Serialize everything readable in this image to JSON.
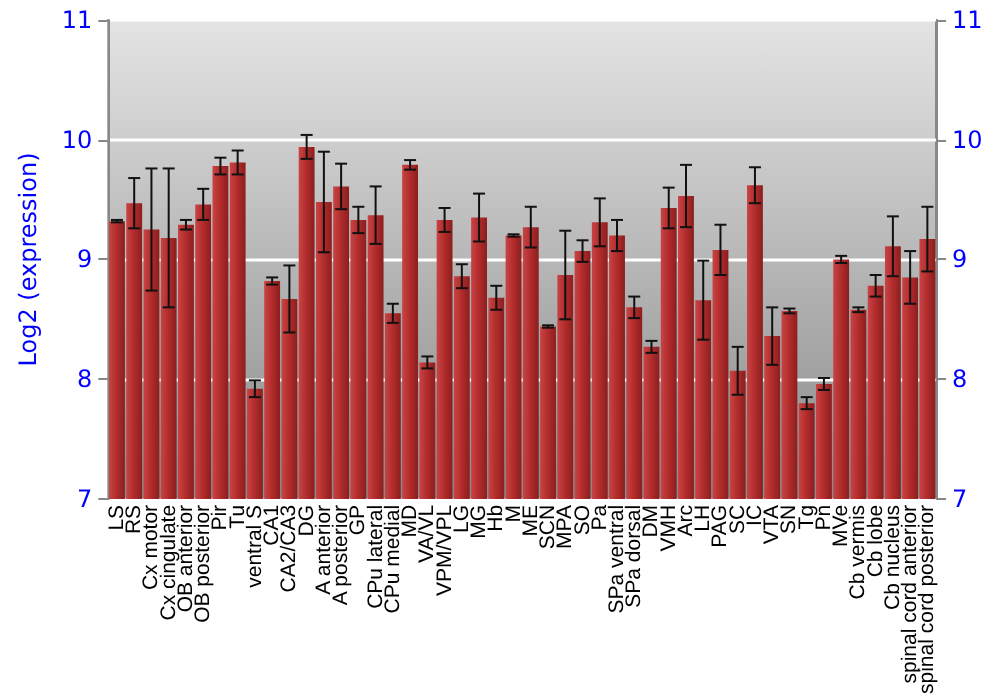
{
  "chart_data": {
    "type": "bar",
    "ylabel": "Log2 (expression)",
    "categories": [
      "LS",
      "RS",
      "Cx motor",
      "Cx cingulate",
      "OB anterior",
      "OB posterior",
      "Pir",
      "Tu",
      "ventral S",
      "CA1",
      "CA2/CA3",
      "DG",
      "A anterior",
      "A posterior",
      "GP",
      "CPu lateral",
      "CPu medial",
      "MD",
      "VA/VL",
      "VPM/VPL",
      "LG",
      "MG",
      "Hb",
      "M",
      "ME",
      "SCN",
      "MPA",
      "SO",
      "Pa",
      "SPa ventral",
      "SPa dorsal",
      "DM",
      "VMH",
      "Arc",
      "LH",
      "PAG",
      "SC",
      "IC",
      "VTA",
      "SN",
      "Tg",
      "Pn",
      "MVe",
      "Cb vermis",
      "Cb lobe",
      "Cb nucleus",
      "spinal cord anterior",
      "spinal cord posterior"
    ],
    "values": [
      9.32,
      9.47,
      9.25,
      9.18,
      9.29,
      9.46,
      9.78,
      9.81,
      7.92,
      8.82,
      8.67,
      9.94,
      9.48,
      9.61,
      9.33,
      9.37,
      8.55,
      9.79,
      8.14,
      9.33,
      8.86,
      9.35,
      8.68,
      9.2,
      9.27,
      8.44,
      8.87,
      9.07,
      9.31,
      9.2,
      8.6,
      8.27,
      9.43,
      9.53,
      8.66,
      9.08,
      8.07,
      9.62,
      8.36,
      8.57,
      7.8,
      7.96,
      9.0,
      8.58,
      8.78,
      9.11,
      8.85,
      9.17
    ],
    "errors": [
      0.01,
      0.21,
      0.51,
      0.58,
      0.04,
      0.13,
      0.07,
      0.1,
      0.07,
      0.03,
      0.28,
      0.1,
      0.42,
      0.19,
      0.11,
      0.24,
      0.08,
      0.04,
      0.05,
      0.1,
      0.1,
      0.2,
      0.1,
      0.01,
      0.17,
      0.01,
      0.37,
      0.09,
      0.2,
      0.13,
      0.09,
      0.05,
      0.17,
      0.26,
      0.33,
      0.21,
      0.2,
      0.15,
      0.24,
      0.02,
      0.05,
      0.05,
      0.03,
      0.02,
      0.09,
      0.25,
      0.22,
      0.27
    ],
    "color": "#b22b2b",
    "ylim": [
      7,
      11
    ],
    "yticks": [
      7,
      8,
      9,
      10,
      11
    ],
    "y2lim": [
      7,
      11
    ],
    "y2ticks": [
      7,
      8,
      9,
      10,
      11
    ],
    "grid": "y"
  }
}
